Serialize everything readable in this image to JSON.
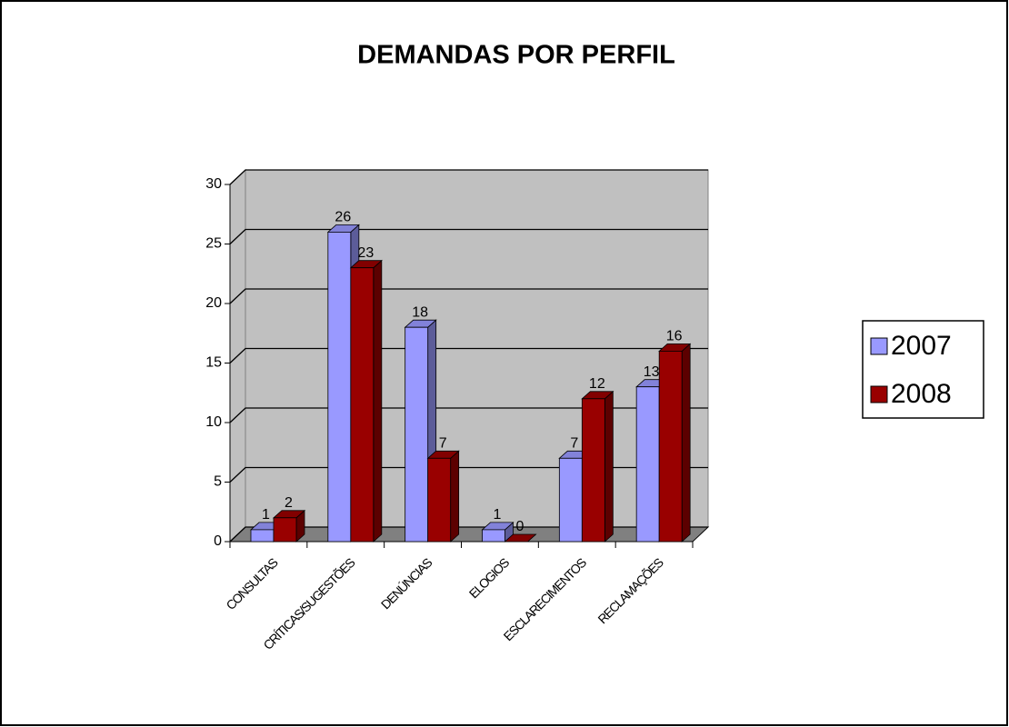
{
  "chart_data": {
    "type": "bar3d",
    "title": "DEMANDAS POR PERFIL",
    "categories": [
      "CONSULTAS",
      "CRÍTICAS/SUGESTÕES",
      "DENÚNCIAS",
      "ELOGIOS",
      "ESCLARECIMENTOS",
      "RECLAMAÇÕES"
    ],
    "series": [
      {
        "name": "2007",
        "color": "#9999ff",
        "values": [
          1,
          26,
          18,
          1,
          7,
          13
        ]
      },
      {
        "name": "2008",
        "color": "#990000",
        "values": [
          2,
          23,
          7,
          0,
          12,
          16
        ]
      }
    ],
    "ylim": [
      0,
      30
    ],
    "yticks": [
      0,
      5,
      10,
      15,
      20,
      25,
      30
    ],
    "grid": true,
    "legend": "right"
  }
}
